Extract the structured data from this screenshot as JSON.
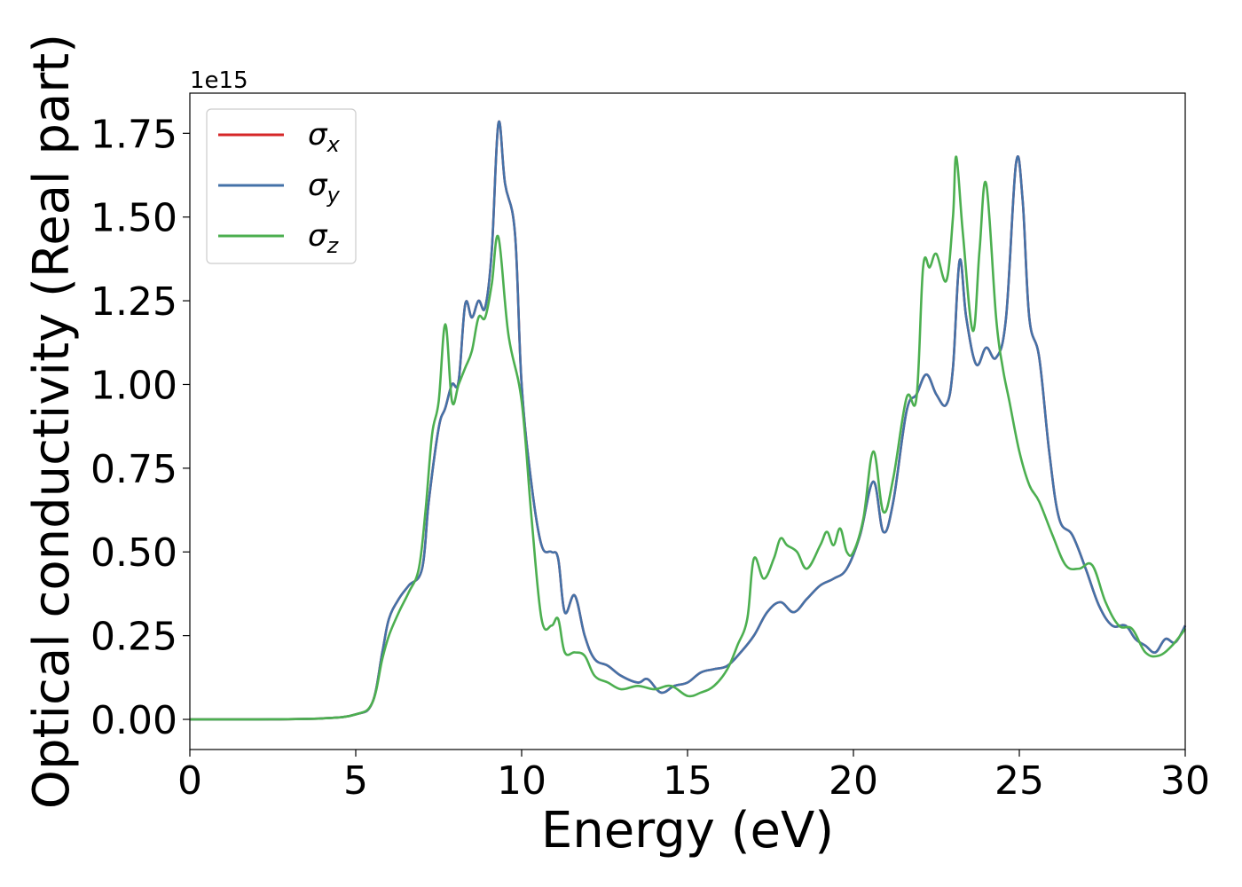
{
  "chart_data": {
    "type": "line",
    "title": "",
    "xlabel": "Energy (eV)",
    "ylabel": "Optical conductivity (Real part)",
    "y_offset_label": "1e15",
    "xlim": [
      0,
      30
    ],
    "ylim": [
      -0.09,
      1.87
    ],
    "x_ticks": [
      0,
      5,
      10,
      15,
      20,
      25,
      30
    ],
    "x_tick_labels": [
      "0",
      "5",
      "10",
      "15",
      "20",
      "25",
      "30"
    ],
    "y_ticks": [
      0,
      0.25,
      0.5,
      0.75,
      1.0,
      1.25,
      1.5,
      1.75
    ],
    "y_tick_labels": [
      "0.00",
      "0.25",
      "0.50",
      "0.75",
      "1.00",
      "1.25",
      "1.50",
      "1.75"
    ],
    "grid": false,
    "legend_position": "upper-left",
    "series": [
      {
        "name": "σx",
        "symbol": "σ",
        "sub": "x",
        "color": "#d62728",
        "x": [
          0,
          2,
          4,
          5,
          5.5,
          5.8,
          6,
          6.3,
          6.6,
          7,
          7.2,
          7.5,
          7.7,
          7.9,
          8.1,
          8.3,
          8.5,
          8.7,
          8.9,
          9.1,
          9.3,
          9.5,
          9.8,
          10,
          10.3,
          10.6,
          10.9,
          11.1,
          11.3,
          11.6,
          11.9,
          12.2,
          12.6,
          13,
          13.5,
          13.8,
          14.2,
          14.6,
          15,
          15.4,
          15.8,
          16.2,
          16.6,
          17,
          17.4,
          17.8,
          18.2,
          18.6,
          19,
          19.4,
          19.8,
          20.2,
          20.6,
          20.9,
          21.2,
          21.6,
          21.9,
          22.2,
          22.5,
          22.8,
          23,
          23.2,
          23.4,
          23.7,
          24,
          24.3,
          24.6,
          24.9,
          25.1,
          25.3,
          25.6,
          25.9,
          26.2,
          26.6,
          27,
          27.4,
          27.8,
          28.2,
          28.5,
          28.8,
          29.1,
          29.4,
          29.7,
          30
        ],
        "values": [
          0,
          0,
          0.003,
          0.015,
          0.05,
          0.2,
          0.3,
          0.36,
          0.4,
          0.45,
          0.65,
          0.87,
          0.93,
          1.0,
          1.01,
          1.24,
          1.2,
          1.25,
          1.23,
          1.4,
          1.78,
          1.6,
          1.45,
          1.0,
          0.7,
          0.52,
          0.5,
          0.48,
          0.32,
          0.37,
          0.25,
          0.18,
          0.16,
          0.13,
          0.11,
          0.12,
          0.08,
          0.1,
          0.11,
          0.14,
          0.15,
          0.16,
          0.2,
          0.25,
          0.32,
          0.35,
          0.32,
          0.36,
          0.4,
          0.42,
          0.45,
          0.55,
          0.71,
          0.56,
          0.65,
          0.92,
          0.97,
          1.03,
          0.97,
          0.94,
          1.05,
          1.37,
          1.2,
          1.06,
          1.11,
          1.08,
          1.2,
          1.66,
          1.55,
          1.2,
          1.08,
          0.8,
          0.6,
          0.55,
          0.45,
          0.34,
          0.28,
          0.28,
          0.24,
          0.22,
          0.2,
          0.24,
          0.23,
          0.28
        ]
      },
      {
        "name": "σy",
        "symbol": "σ",
        "sub": "y",
        "color": "#4472a8",
        "x": [
          0,
          2,
          4,
          5,
          5.5,
          5.8,
          6,
          6.3,
          6.6,
          7,
          7.2,
          7.5,
          7.7,
          7.9,
          8.1,
          8.3,
          8.5,
          8.7,
          8.9,
          9.1,
          9.3,
          9.5,
          9.8,
          10,
          10.3,
          10.6,
          10.9,
          11.1,
          11.3,
          11.6,
          11.9,
          12.2,
          12.6,
          13,
          13.5,
          13.8,
          14.2,
          14.6,
          15,
          15.4,
          15.8,
          16.2,
          16.6,
          17,
          17.4,
          17.8,
          18.2,
          18.6,
          19,
          19.4,
          19.8,
          20.2,
          20.6,
          20.9,
          21.2,
          21.6,
          21.9,
          22.2,
          22.5,
          22.8,
          23,
          23.2,
          23.4,
          23.7,
          24,
          24.3,
          24.6,
          24.9,
          25.1,
          25.3,
          25.6,
          25.9,
          26.2,
          26.6,
          27,
          27.4,
          27.8,
          28.2,
          28.5,
          28.8,
          29.1,
          29.4,
          29.7,
          30
        ],
        "values": [
          0,
          0,
          0.003,
          0.015,
          0.05,
          0.2,
          0.3,
          0.36,
          0.4,
          0.45,
          0.65,
          0.87,
          0.93,
          1.0,
          1.01,
          1.24,
          1.2,
          1.25,
          1.23,
          1.4,
          1.78,
          1.6,
          1.45,
          1.0,
          0.7,
          0.52,
          0.5,
          0.48,
          0.32,
          0.37,
          0.25,
          0.18,
          0.16,
          0.13,
          0.11,
          0.12,
          0.08,
          0.1,
          0.11,
          0.14,
          0.15,
          0.16,
          0.2,
          0.25,
          0.32,
          0.35,
          0.32,
          0.36,
          0.4,
          0.42,
          0.45,
          0.55,
          0.71,
          0.56,
          0.65,
          0.92,
          0.97,
          1.03,
          0.97,
          0.94,
          1.05,
          1.37,
          1.2,
          1.06,
          1.11,
          1.08,
          1.2,
          1.66,
          1.55,
          1.2,
          1.08,
          0.8,
          0.6,
          0.55,
          0.45,
          0.34,
          0.28,
          0.28,
          0.24,
          0.22,
          0.2,
          0.24,
          0.23,
          0.28
        ]
      },
      {
        "name": "σz",
        "symbol": "σ",
        "sub": "z",
        "color": "#4caf50",
        "x": [
          0,
          2,
          4,
          5,
          5.5,
          5.8,
          6,
          6.3,
          6.6,
          6.9,
          7.1,
          7.3,
          7.5,
          7.7,
          7.9,
          8.1,
          8.3,
          8.5,
          8.7,
          8.9,
          9.1,
          9.3,
          9.6,
          10,
          10.3,
          10.6,
          10.9,
          11.1,
          11.3,
          11.6,
          11.9,
          12.2,
          12.6,
          13,
          13.5,
          14,
          14.5,
          15,
          15.4,
          15.8,
          16.2,
          16.5,
          16.8,
          17,
          17.3,
          17.6,
          17.8,
          18,
          18.3,
          18.6,
          19,
          19.2,
          19.4,
          19.6,
          19.8,
          20,
          20.3,
          20.6,
          20.9,
          21.2,
          21.6,
          21.9,
          22.1,
          22.3,
          22.5,
          22.8,
          23,
          23.1,
          23.3,
          23.6,
          23.8,
          24,
          24.3,
          24.5,
          24.7,
          25,
          25.3,
          25.6,
          26,
          26.4,
          26.8,
          27.2,
          27.6,
          28,
          28.4,
          28.8,
          29.2,
          29.6,
          30
        ],
        "values": [
          0,
          0,
          0.003,
          0.015,
          0.05,
          0.18,
          0.25,
          0.32,
          0.38,
          0.45,
          0.62,
          0.85,
          0.95,
          1.18,
          0.95,
          1.0,
          1.05,
          1.1,
          1.2,
          1.2,
          1.3,
          1.44,
          1.15,
          0.95,
          0.6,
          0.3,
          0.28,
          0.3,
          0.2,
          0.2,
          0.19,
          0.13,
          0.11,
          0.09,
          0.1,
          0.09,
          0.1,
          0.07,
          0.08,
          0.1,
          0.15,
          0.22,
          0.3,
          0.48,
          0.42,
          0.48,
          0.54,
          0.52,
          0.5,
          0.45,
          0.52,
          0.56,
          0.52,
          0.57,
          0.5,
          0.5,
          0.6,
          0.8,
          0.62,
          0.72,
          0.96,
          0.96,
          1.35,
          1.35,
          1.39,
          1.31,
          1.5,
          1.68,
          1.45,
          1.16,
          1.4,
          1.6,
          1.2,
          1.05,
          0.95,
          0.8,
          0.7,
          0.65,
          0.55,
          0.46,
          0.45,
          0.46,
          0.35,
          0.28,
          0.27,
          0.2,
          0.19,
          0.22,
          0.27
        ]
      }
    ]
  }
}
